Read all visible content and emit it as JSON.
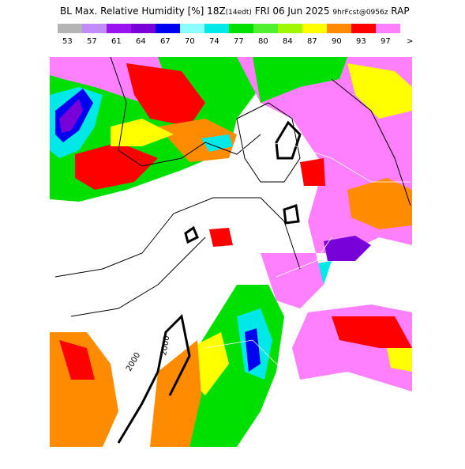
{
  "header": {
    "title_parts": [
      "BL Max. Relative Humidity [%] 18Z",
      "(14edt)",
      " FRI 06 Jun 2025 ",
      "9hrFcst@0956z",
      " RAP"
    ]
  },
  "color_scale": [
    {
      "label": "53",
      "color": "#b4b4b4"
    },
    {
      "label": "57",
      "color": "#c08cf8"
    },
    {
      "label": "61",
      "color": "#9a14f0"
    },
    {
      "label": "64",
      "color": "#7800d8"
    },
    {
      "label": "67",
      "color": "#0000f0"
    },
    {
      "label": "70",
      "color": "#8cfcfc"
    },
    {
      "label": "74",
      "color": "#00e8e8"
    },
    {
      "label": "77",
      "color": "#00e000"
    },
    {
      "label": "80",
      "color": "#50f030"
    },
    {
      "label": "84",
      "color": "#a0f800"
    },
    {
      "label": "87",
      "color": "#ffff00"
    },
    {
      "label": "90",
      "color": "#ff8c00"
    },
    {
      "label": "93",
      "color": "#ff0000"
    },
    {
      "label": "97",
      "color": "#ff80ff"
    }
  ],
  "scale_end": ">",
  "contour_labels": [
    "2000",
    "2000"
  ]
}
